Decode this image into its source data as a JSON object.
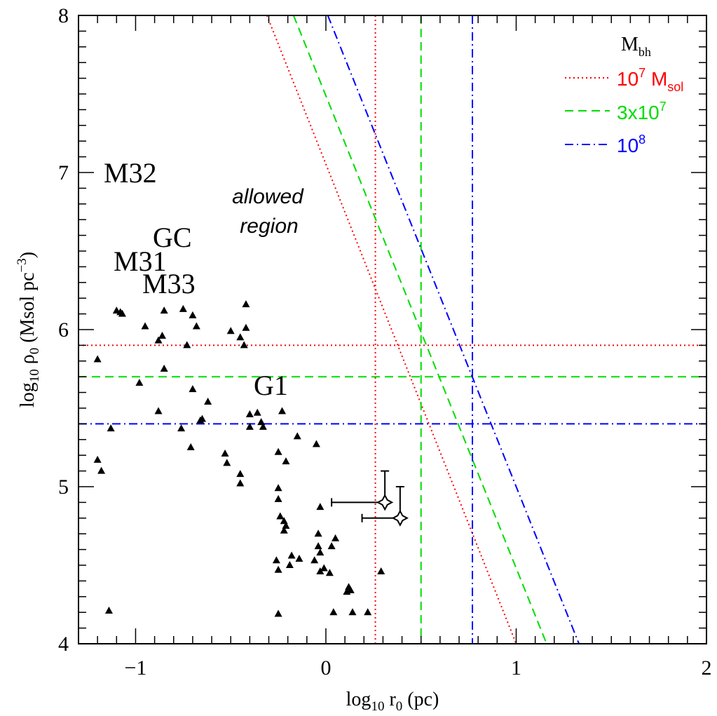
{
  "chart_data": {
    "type": "scatter",
    "xlabel": "log10 r0 (pc)",
    "ylabel": "log10 ρ0 (Msol pc-3)",
    "xlim": [
      -1.3,
      2.0
    ],
    "ylim": [
      4.0,
      8.0
    ],
    "x_ticks": [
      -1,
      0,
      1,
      2
    ],
    "y_ticks": [
      4,
      5,
      6,
      7,
      8
    ],
    "x_tick_labels": [
      "−1",
      "0",
      "1",
      "2"
    ],
    "y_tick_labels": [
      "4",
      "5",
      "6",
      "7",
      "8"
    ],
    "grid": false,
    "legend": {
      "position": "top-right",
      "title": "Mbh",
      "entries": [
        {
          "label": "10^7 Msol",
          "color": "#ff0000",
          "style": "dotted"
        },
        {
          "label": "3x10^7",
          "color": "#00dd00",
          "style": "dashed"
        },
        {
          "label": "10^8",
          "color": "#0000ff",
          "style": "dash-dot"
        }
      ]
    },
    "galaxy_labels": [
      "M32",
      "GC",
      "M31",
      "M33",
      "G1"
    ],
    "annotation": [
      "allowed",
      "region"
    ],
    "constraint_lines": [
      {
        "color": "#ff0000",
        "style": "dotted",
        "horizontal_y": 5.9,
        "vertical_x": 0.26,
        "diagonal": [
          [
            -0.31,
            8.0
          ],
          [
            1.0,
            4.0
          ]
        ]
      },
      {
        "color": "#00dd00",
        "style": "dashed",
        "horizontal_y": 5.7,
        "vertical_x": 0.5,
        "diagonal": [
          [
            -0.17,
            8.0
          ],
          [
            1.16,
            4.0
          ]
        ]
      },
      {
        "color": "#0000ff",
        "style": "dash-dot",
        "horizontal_y": 5.4,
        "vertical_x": 0.77,
        "diagonal": [
          [
            0.01,
            8.0
          ],
          [
            1.33,
            4.0
          ]
        ]
      }
    ],
    "points": [
      [
        -1.1,
        6.12
      ],
      [
        -1.08,
        6.11
      ],
      [
        -1.07,
        6.1
      ],
      [
        -0.95,
        6.02
      ],
      [
        -0.85,
        6.12
      ],
      [
        -0.75,
        6.13
      ],
      [
        -0.7,
        6.09
      ],
      [
        -0.68,
        6.02
      ],
      [
        -0.42,
        6.16
      ],
      [
        -0.5,
        5.99
      ],
      [
        -0.42,
        6.01
      ],
      [
        -0.45,
        5.95
      ],
      [
        -0.43,
        5.9
      ],
      [
        -0.88,
        5.93
      ],
      [
        -0.86,
        5.96
      ],
      [
        -0.73,
        5.9
      ],
      [
        -1.2,
        5.81
      ],
      [
        -0.85,
        5.75
      ],
      [
        -0.98,
        5.66
      ],
      [
        -0.7,
        5.62
      ],
      [
        -0.62,
        5.54
      ],
      [
        -0.88,
        5.48
      ],
      [
        -0.65,
        5.43
      ],
      [
        -0.66,
        5.42
      ],
      [
        -0.76,
        5.37
      ],
      [
        -0.71,
        5.25
      ],
      [
        -0.23,
        5.48
      ],
      [
        -0.4,
        5.46
      ],
      [
        -0.36,
        5.47
      ],
      [
        -0.4,
        5.38
      ],
      [
        -0.34,
        5.41
      ],
      [
        -0.33,
        5.38
      ],
      [
        -1.13,
        5.37
      ],
      [
        -1.2,
        5.17
      ],
      [
        -1.18,
        5.1
      ],
      [
        -0.53,
        5.21
      ],
      [
        -0.52,
        5.15
      ],
      [
        -0.45,
        5.08
      ],
      [
        -0.45,
        5.02
      ],
      [
        -0.25,
        5.22
      ],
      [
        -0.21,
        5.16
      ],
      [
        -0.15,
        5.32
      ],
      [
        -0.05,
        5.27
      ],
      [
        -0.25,
        4.99
      ],
      [
        -0.25,
        4.92
      ],
      [
        -0.24,
        4.81
      ],
      [
        -0.22,
        4.78
      ],
      [
        -0.21,
        4.75
      ],
      [
        -0.22,
        4.72
      ],
      [
        -0.03,
        4.87
      ],
      [
        -0.04,
        4.7
      ],
      [
        -0.04,
        4.62
      ],
      [
        -0.03,
        4.58
      ],
      [
        0.03,
        4.62
      ],
      [
        0.05,
        4.67
      ],
      [
        -0.06,
        4.53
      ],
      [
        -0.01,
        4.48
      ],
      [
        -0.18,
        4.56
      ],
      [
        -0.19,
        4.5
      ],
      [
        -0.14,
        4.54
      ],
      [
        -0.26,
        4.53
      ],
      [
        -0.25,
        4.47
      ],
      [
        -0.03,
        4.46
      ],
      [
        0.02,
        4.45
      ],
      [
        0.12,
        4.36
      ],
      [
        0.13,
        4.34
      ],
      [
        0.11,
        4.33
      ],
      [
        0.22,
        4.2
      ],
      [
        0.14,
        4.2
      ],
      [
        0.04,
        4.2
      ],
      [
        -0.25,
        4.19
      ],
      [
        -1.14,
        4.21
      ],
      [
        0.29,
        4.46
      ]
    ],
    "star_points": [
      {
        "x": 0.31,
        "y": 4.9,
        "xerr_low": 0.28,
        "yerr_high": 0.2
      },
      {
        "x": 0.39,
        "y": 4.8,
        "xerr_low": 0.2,
        "yerr_high": 0.2
      }
    ]
  }
}
